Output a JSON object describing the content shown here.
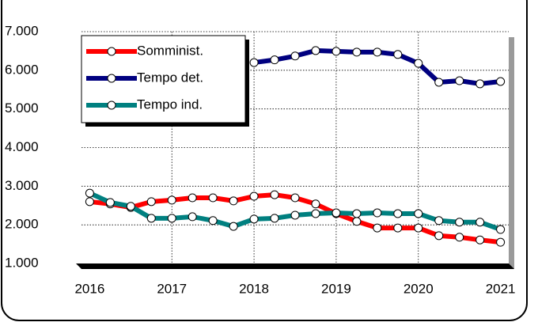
{
  "chart_data": {
    "type": "line",
    "x": [
      2016,
      2016.25,
      2016.5,
      2016.75,
      2017,
      2017.25,
      2017.5,
      2017.75,
      2018,
      2018.25,
      2018.5,
      2018.75,
      2019,
      2019.25,
      2019.5,
      2019.75,
      2020,
      2020.25,
      2020.5,
      2020.75,
      2021
    ],
    "series": [
      {
        "name": "Somminist.",
        "color": "#ff0000",
        "values": [
          2600,
          2540,
          2450,
          2600,
          2640,
          2700,
          2700,
          2620,
          2740,
          2780,
          2700,
          2540,
          2290,
          2090,
          1920,
          1920,
          1920,
          1720,
          1680,
          1610,
          1550
        ]
      },
      {
        "name": "Tempo det.",
        "color": "#000080",
        "values": [
          4750,
          null,
          null,
          null,
          null,
          null,
          null,
          null,
          6200,
          6270,
          6370,
          6510,
          6490,
          6470,
          6470,
          6410,
          6180,
          5690,
          5730,
          5650,
          5710
        ]
      },
      {
        "name": "Tempo ind.",
        "color": "#008080",
        "values": [
          2820,
          2580,
          2480,
          2170,
          2170,
          2210,
          2110,
          1960,
          2150,
          2170,
          2250,
          2290,
          2310,
          2290,
          2310,
          2290,
          2290,
          2110,
          2070,
          2070,
          1880
        ]
      }
    ],
    "xlim": [
      2015.9,
      2021.1
    ],
    "xticks": [
      2016,
      2017,
      2018,
      2019,
      2020,
      2021
    ],
    "ylim": [
      1000,
      7000
    ],
    "yticks": [
      {
        "value": 1000,
        "label": "1.000"
      },
      {
        "value": 2000,
        "label": "2.000"
      },
      {
        "value": 3000,
        "label": "3.000"
      },
      {
        "value": 4000,
        "label": "4.000"
      },
      {
        "value": 5000,
        "label": "5.000"
      },
      {
        "value": 6000,
        "label": "6.000"
      },
      {
        "value": 7000,
        "label": "7.000"
      }
    ],
    "grid": true,
    "legend": "upper left"
  }
}
